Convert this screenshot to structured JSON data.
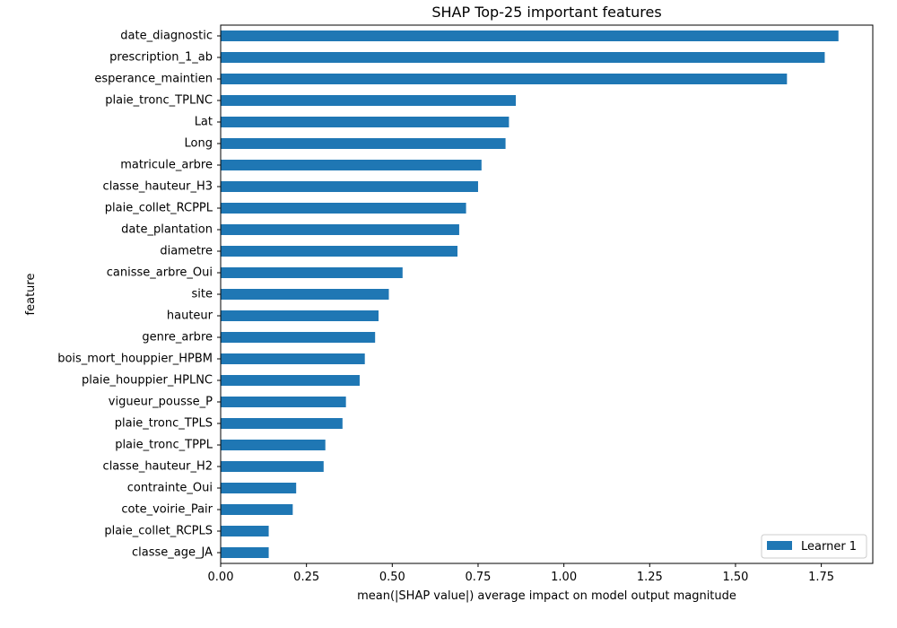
{
  "chart_data": {
    "type": "bar",
    "orientation": "horizontal",
    "title": "SHAP Top-25 important features",
    "xlabel": "mean(|SHAP value|) average impact on model output magnitude",
    "ylabel": "feature",
    "xlim": [
      0,
      1.9
    ],
    "xticks": [
      "0.00",
      "0.25",
      "0.50",
      "0.75",
      "1.00",
      "1.25",
      "1.50",
      "1.75"
    ],
    "xtick_values": [
      0,
      0.25,
      0.5,
      0.75,
      1.0,
      1.25,
      1.5,
      1.75
    ],
    "grid": false,
    "legend_position": "bottom-right",
    "categories": [
      "date_diagnostic",
      "prescription_1_ab",
      "esperance_maintien",
      "plaie_tronc_TPLNC",
      "Lat",
      "Long",
      "matricule_arbre",
      "classe_hauteur_H3",
      "plaie_collet_RCPPL",
      "date_plantation",
      "diametre",
      "canisse_arbre_Oui",
      "site",
      "hauteur",
      "genre_arbre",
      "bois_mort_houppier_HPBM",
      "plaie_houppier_HPLNC",
      "vigueur_pousse_P",
      "plaie_tronc_TPLS",
      "plaie_tronc_TPPL",
      "classe_hauteur_H2",
      "contrainte_Oui",
      "cote_voirie_Pair",
      "plaie_collet_RCPLS",
      "classe_age_JA"
    ],
    "series": [
      {
        "name": "Learner 1",
        "color": "#1f77b4",
        "values": [
          1.8,
          1.76,
          1.65,
          0.86,
          0.84,
          0.83,
          0.76,
          0.75,
          0.715,
          0.695,
          0.69,
          0.53,
          0.49,
          0.46,
          0.45,
          0.42,
          0.405,
          0.365,
          0.355,
          0.305,
          0.3,
          0.22,
          0.21,
          0.14,
          0.14
        ]
      }
    ]
  }
}
